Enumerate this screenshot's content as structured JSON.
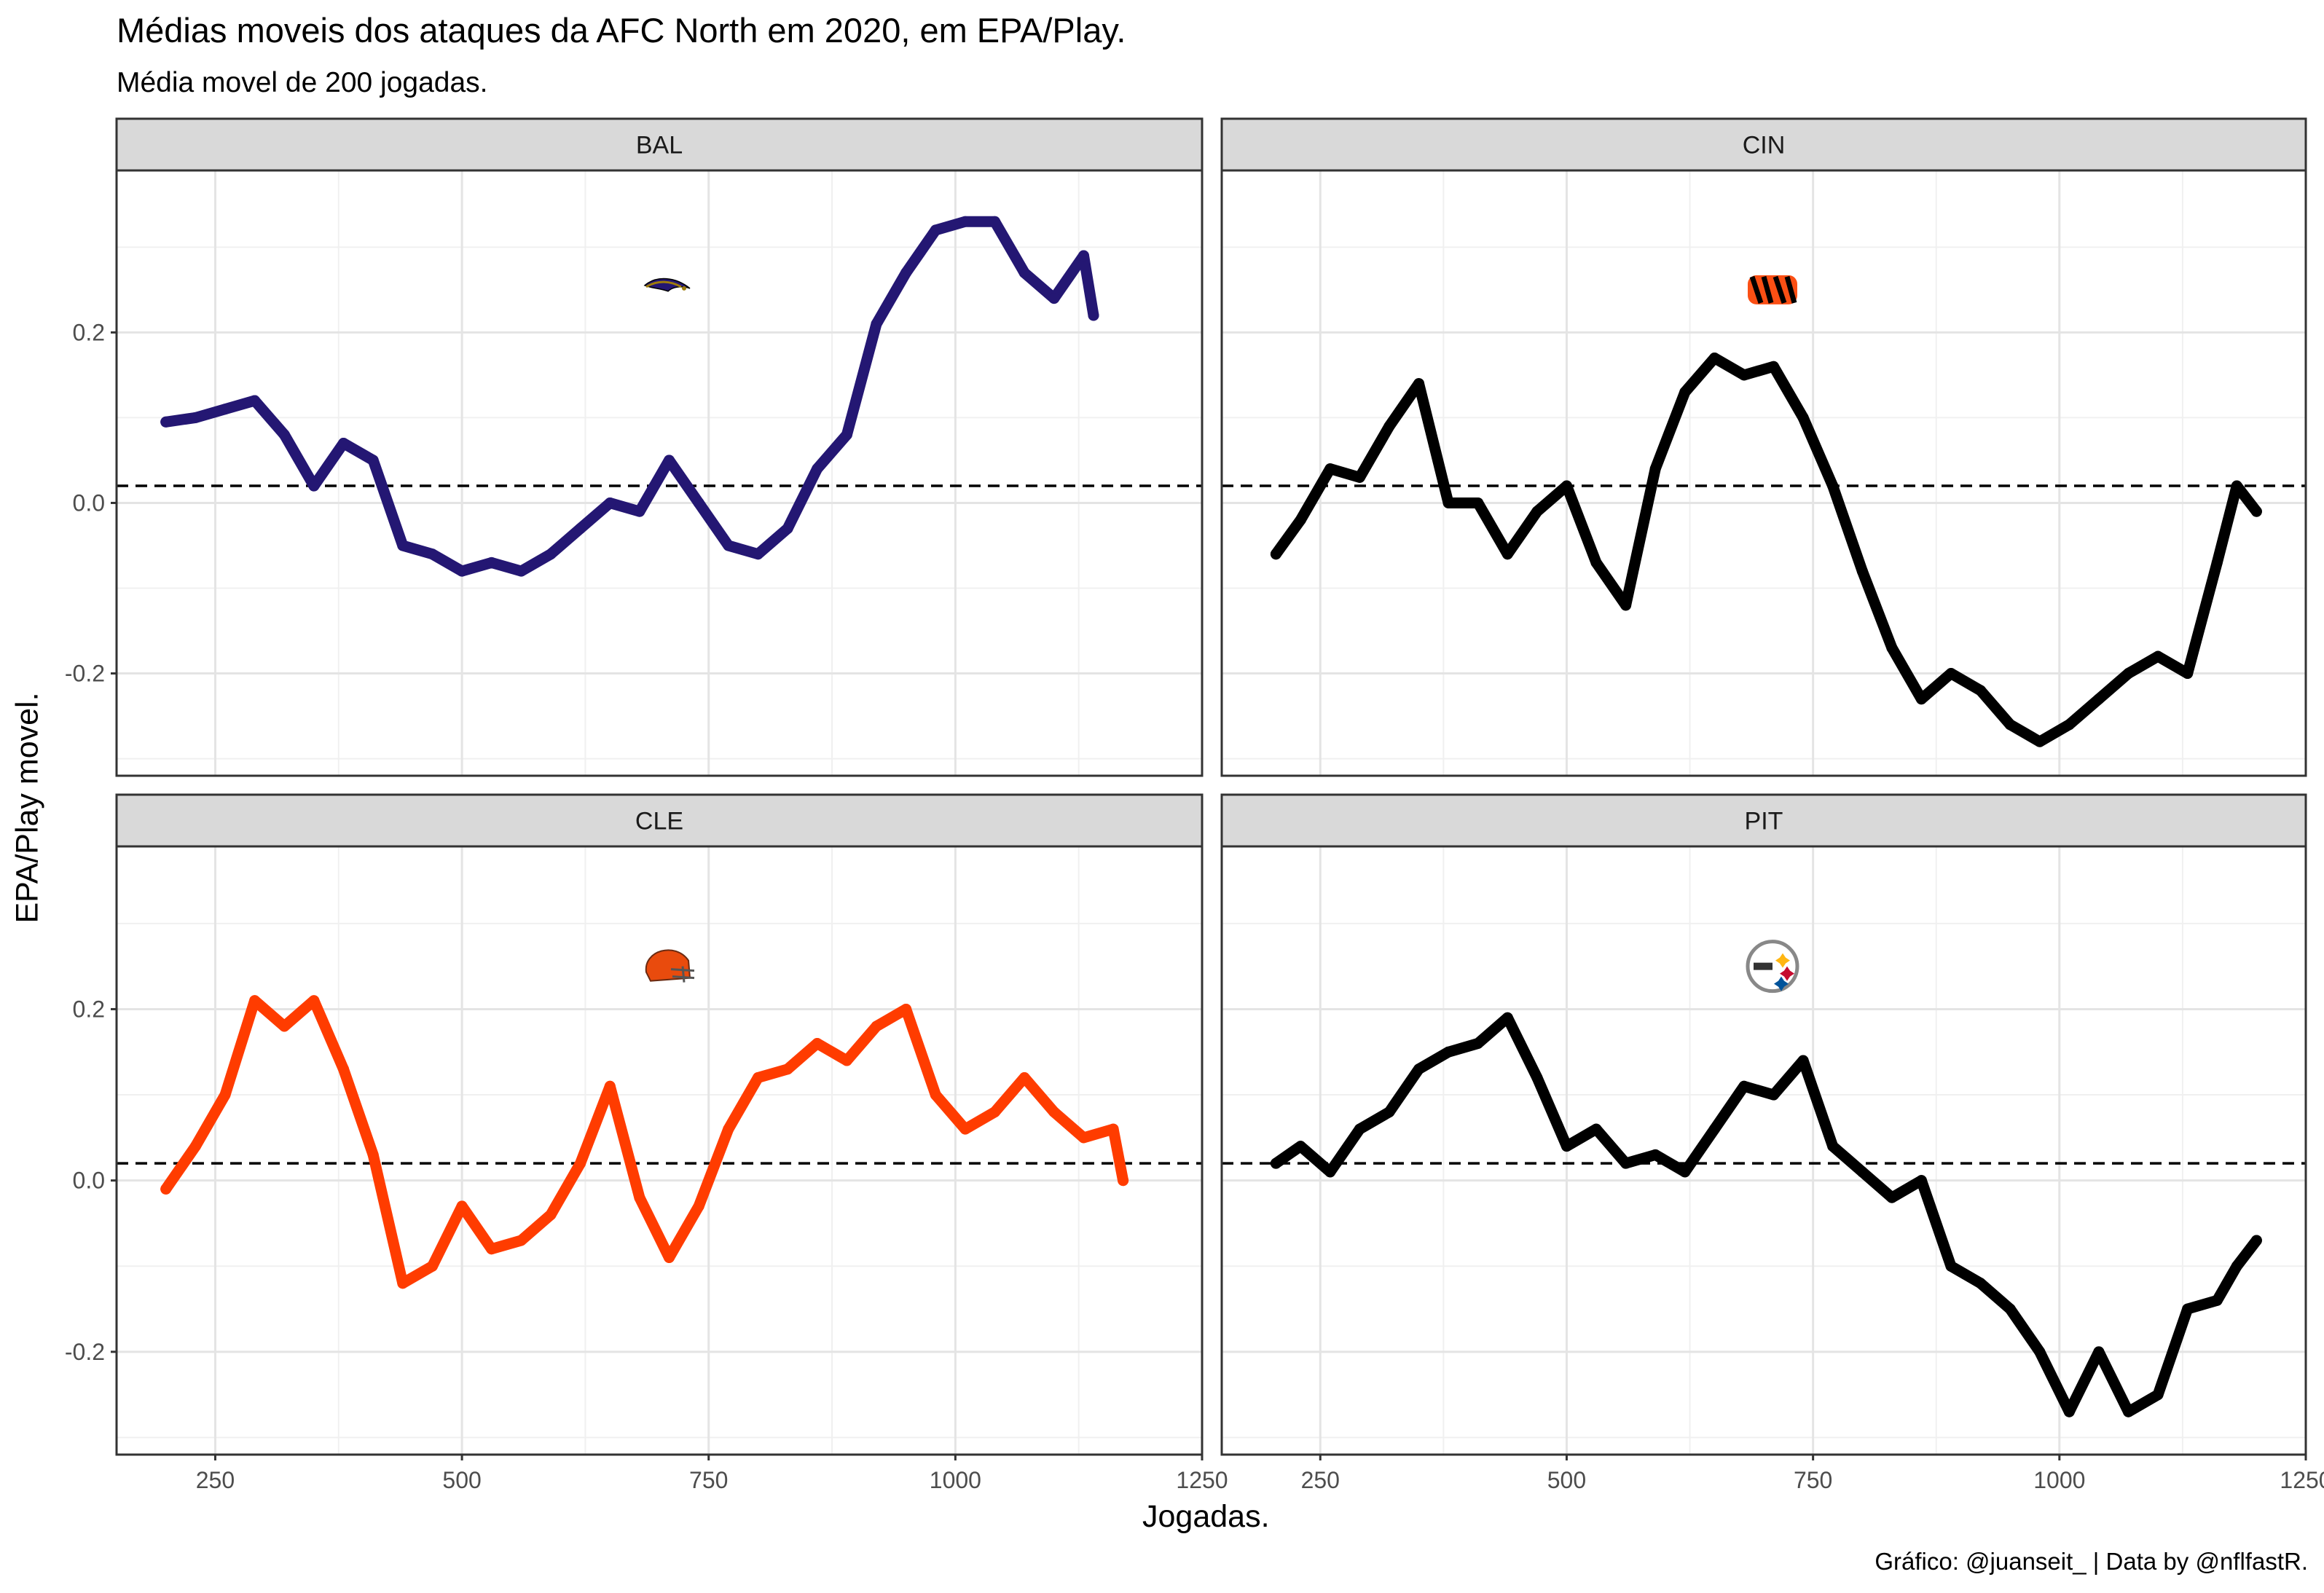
{
  "title": "Médias moveis dos ataques da AFC North em 2020, em EPA/Play.",
  "subtitle": "Média movel de 200 jogadas.",
  "caption": "Gráfico: @juanseit_ | Data by @nflfastR.",
  "chart_data": {
    "type": "line",
    "xlabel": "Jogadas.",
    "ylabel": "EPA/Play movel.",
    "xlim": [
      150,
      1250
    ],
    "ylim": [
      -0.32,
      0.39
    ],
    "x_ticks": [
      250,
      500,
      750,
      1000,
      1250
    ],
    "x_tick_labels": [
      "250",
      "500",
      "750",
      "1000",
      "1250"
    ],
    "y_ticks": [
      -0.2,
      0.0,
      0.2
    ],
    "y_tick_labels": [
      "-0.2",
      "0.0",
      "0.2"
    ],
    "reference_line": {
      "y": 0.02,
      "style": "dashed"
    },
    "grid": true,
    "facets": [
      {
        "name": "BAL",
        "color": "#241773",
        "logo": "ravens-logo",
        "logo_pos": [
          700,
          0.25
        ],
        "x": [
          200,
          230,
          260,
          290,
          320,
          350,
          380,
          410,
          440,
          470,
          500,
          530,
          560,
          590,
          620,
          650,
          680,
          710,
          740,
          770,
          800,
          830,
          860,
          890,
          920,
          950,
          980,
          1010,
          1040,
          1070,
          1100,
          1130,
          1140
        ],
        "y": [
          0.095,
          0.1,
          0.11,
          0.12,
          0.08,
          0.02,
          0.07,
          0.05,
          -0.05,
          -0.06,
          -0.08,
          -0.07,
          -0.08,
          -0.06,
          -0.03,
          0.0,
          -0.01,
          0.05,
          0.0,
          -0.05,
          -0.06,
          -0.03,
          0.04,
          0.08,
          0.21,
          0.27,
          0.32,
          0.33,
          0.33,
          0.27,
          0.24,
          0.29,
          0.22
        ]
      },
      {
        "name": "CIN",
        "color": "#000000",
        "logo": "bengals-logo",
        "logo_pos": [
          700,
          0.25
        ],
        "x": [
          205,
          230,
          260,
          290,
          320,
          350,
          380,
          410,
          440,
          470,
          500,
          530,
          560,
          590,
          620,
          650,
          680,
          710,
          740,
          770,
          800,
          830,
          860,
          890,
          920,
          950,
          980,
          1010,
          1040,
          1070,
          1100,
          1130,
          1160,
          1180,
          1200
        ],
        "y": [
          -0.06,
          -0.02,
          0.04,
          0.03,
          0.09,
          0.14,
          0.0,
          0.0,
          -0.06,
          -0.01,
          0.02,
          -0.07,
          -0.12,
          0.04,
          0.13,
          0.17,
          0.15,
          0.16,
          0.1,
          0.02,
          -0.08,
          -0.17,
          -0.23,
          -0.2,
          -0.22,
          -0.26,
          -0.28,
          -0.26,
          -0.23,
          -0.2,
          -0.18,
          -0.2,
          -0.07,
          0.02,
          -0.01
        ]
      },
      {
        "name": "CLE",
        "color": "#FF3C00",
        "logo": "browns-logo",
        "logo_pos": [
          700,
          0.25
        ],
        "x": [
          200,
          230,
          260,
          290,
          320,
          350,
          380,
          410,
          440,
          470,
          500,
          530,
          560,
          590,
          620,
          650,
          680,
          710,
          740,
          770,
          800,
          830,
          860,
          890,
          920,
          950,
          980,
          1010,
          1040,
          1070,
          1100,
          1130,
          1160,
          1170
        ],
        "y": [
          -0.01,
          0.04,
          0.1,
          0.21,
          0.18,
          0.21,
          0.13,
          0.03,
          -0.12,
          -0.1,
          -0.03,
          -0.08,
          -0.07,
          -0.04,
          0.02,
          0.11,
          -0.02,
          -0.09,
          -0.03,
          0.06,
          0.12,
          0.13,
          0.16,
          0.14,
          0.18,
          0.2,
          0.1,
          0.06,
          0.08,
          0.12,
          0.08,
          0.05,
          0.06,
          0.0
        ]
      },
      {
        "name": "PIT",
        "color": "#000000",
        "logo": "steelers-logo",
        "logo_pos": [
          700,
          0.25
        ],
        "x": [
          205,
          230,
          260,
          290,
          320,
          350,
          380,
          410,
          440,
          470,
          500,
          530,
          560,
          590,
          620,
          650,
          680,
          710,
          740,
          770,
          800,
          830,
          860,
          890,
          920,
          950,
          980,
          1010,
          1040,
          1070,
          1100,
          1130,
          1160,
          1180,
          1200
        ],
        "y": [
          0.02,
          0.04,
          0.01,
          0.06,
          0.08,
          0.13,
          0.15,
          0.16,
          0.19,
          0.12,
          0.04,
          0.06,
          0.02,
          0.03,
          0.01,
          0.06,
          0.11,
          0.1,
          0.14,
          0.04,
          0.01,
          -0.02,
          0.0,
          -0.1,
          -0.12,
          -0.15,
          -0.2,
          -0.27,
          -0.2,
          -0.27,
          -0.25,
          -0.15,
          -0.14,
          -0.1,
          -0.07
        ]
      }
    ]
  }
}
